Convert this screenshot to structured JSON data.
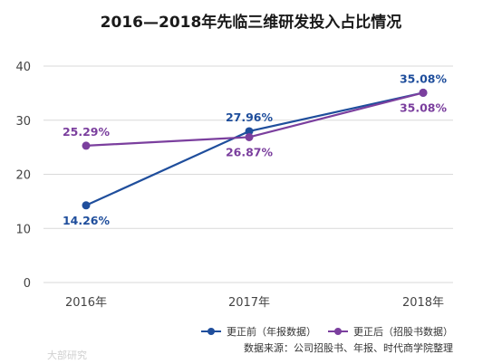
{
  "chart_data": {
    "type": "line",
    "title": "2016—2018年先临三维研发投入占比情况",
    "categories": [
      "2016年",
      "2017年",
      "2018年"
    ],
    "ylim": [
      0,
      40
    ],
    "yticks": [
      0,
      10,
      20,
      30,
      40
    ],
    "grid": true,
    "legend_position": "bottom-right",
    "series": [
      {
        "name": "更正前（年报数据）",
        "color": "#1f4e9c",
        "values": [
          14.26,
          27.96,
          35.08
        ],
        "labels": [
          "14.26%",
          "27.96%",
          "35.08%"
        ],
        "label_positions": [
          "below",
          "above",
          "above"
        ]
      },
      {
        "name": "更正后（招股书数据）",
        "color": "#7b3f9e",
        "values": [
          25.29,
          26.87,
          35.08
        ],
        "labels": [
          "25.29%",
          "26.87%",
          "35.08%"
        ],
        "label_positions": [
          "above",
          "below",
          "below"
        ]
      }
    ]
  },
  "source": "数据来源：公司招股书、年报、时代商学院整理",
  "watermark": "大部研究"
}
